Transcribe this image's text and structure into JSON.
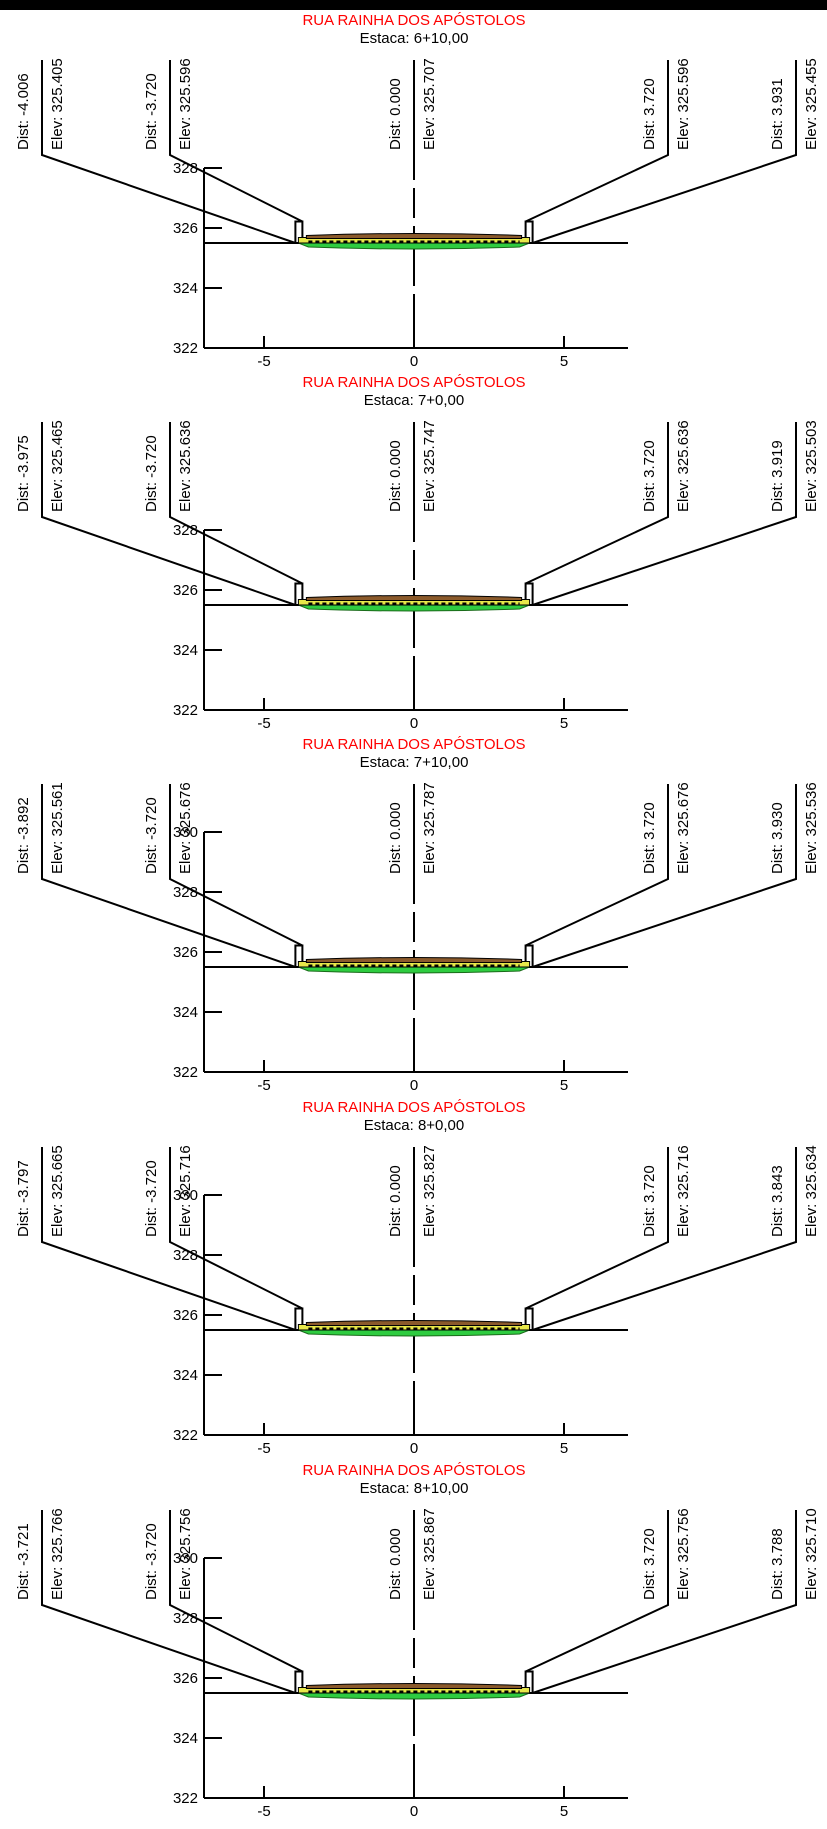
{
  "sections": [
    {
      "road": "RUA RAINHA DOS APÓSTOLOS",
      "station": "Estaca: 6+10,00",
      "points": [
        {
          "dist": "Dist: -4.006",
          "elev": "Elev: 325.405"
        },
        {
          "dist": "Dist: -3.720",
          "elev": "Elev: 325.596"
        },
        {
          "dist": "Dist: 0.000",
          "elev": "Elev: 325.707"
        },
        {
          "dist": "Dist: 3.720",
          "elev": "Elev: 325.596"
        },
        {
          "dist": "Dist: 3.931",
          "elev": "Elev: 325.455"
        }
      ],
      "y_ticks": [
        "328",
        "326",
        "324",
        "322"
      ],
      "x_ticks": [
        "-5",
        "0",
        "5"
      ]
    },
    {
      "road": "RUA RAINHA DOS APÓSTOLOS",
      "station": "Estaca: 7+0,00",
      "points": [
        {
          "dist": "Dist: -3.975",
          "elev": "Elev: 325.465"
        },
        {
          "dist": "Dist: -3.720",
          "elev": "Elev: 325.636"
        },
        {
          "dist": "Dist: 0.000",
          "elev": "Elev: 325.747"
        },
        {
          "dist": "Dist: 3.720",
          "elev": "Elev: 325.636"
        },
        {
          "dist": "Dist: 3.919",
          "elev": "Elev: 325.503"
        }
      ],
      "y_ticks": [
        "328",
        "326",
        "324",
        "322"
      ],
      "x_ticks": [
        "-5",
        "0",
        "5"
      ]
    },
    {
      "road": "RUA RAINHA DOS APÓSTOLOS",
      "station": "Estaca: 7+10,00",
      "points": [
        {
          "dist": "Dist: -3.892",
          "elev": "Elev: 325.561"
        },
        {
          "dist": "Dist: -3.720",
          "elev": "Elev: 325.676"
        },
        {
          "dist": "Dist: 0.000",
          "elev": "Elev: 325.787"
        },
        {
          "dist": "Dist: 3.720",
          "elev": "Elev: 325.676"
        },
        {
          "dist": "Dist: 3.930",
          "elev": "Elev: 325.536"
        }
      ],
      "y_ticks": [
        "330",
        "328",
        "326",
        "324",
        "322"
      ],
      "x_ticks": [
        "-5",
        "0",
        "5"
      ]
    },
    {
      "road": "RUA RAINHA DOS APÓSTOLOS",
      "station": "Estaca: 8+0,00",
      "points": [
        {
          "dist": "Dist: -3.797",
          "elev": "Elev: 325.665"
        },
        {
          "dist": "Dist: -3.720",
          "elev": "Elev: 325.716"
        },
        {
          "dist": "Dist: 0.000",
          "elev": "Elev: 325.827"
        },
        {
          "dist": "Dist: 3.720",
          "elev": "Elev: 325.716"
        },
        {
          "dist": "Dist: 3.843",
          "elev": "Elev: 325.634"
        }
      ],
      "y_ticks": [
        "330",
        "328",
        "326",
        "324",
        "322"
      ],
      "x_ticks": [
        "-5",
        "0",
        "5"
      ]
    },
    {
      "road": "RUA RAINHA DOS APÓSTOLOS",
      "station": "Estaca: 8+10,00",
      "points": [
        {
          "dist": "Dist: -3.721",
          "elev": "Elev: 325.766"
        },
        {
          "dist": "Dist: -3.720",
          "elev": "Elev: 325.756"
        },
        {
          "dist": "Dist: 0.000",
          "elev": "Elev: 325.867"
        },
        {
          "dist": "Dist: 3.720",
          "elev": "Elev: 325.756"
        },
        {
          "dist": "Dist: 3.788",
          "elev": "Elev: 325.710"
        }
      ],
      "y_ticks": [
        "330",
        "328",
        "326",
        "324",
        "322"
      ],
      "x_ticks": [
        "-5",
        "0",
        "5"
      ]
    }
  ]
}
